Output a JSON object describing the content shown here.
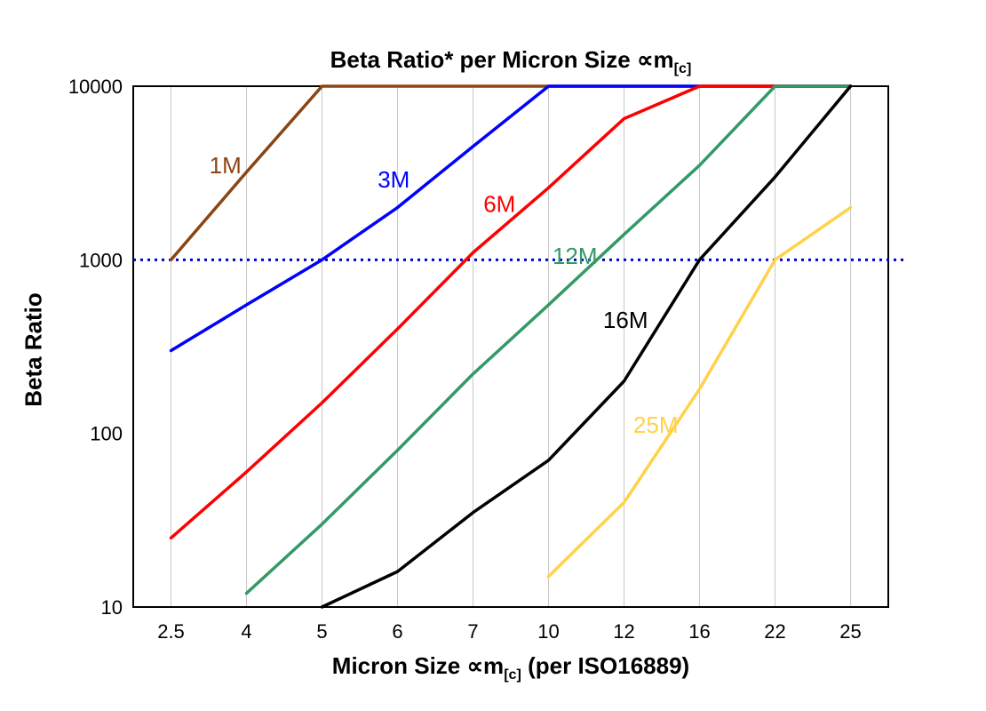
{
  "chart": {
    "title": {
      "main": "Beta Ratio* per Micron Size ",
      "symbol": "∝m",
      "sub": "[c]"
    },
    "x_axis": {
      "label_pre": "Micron Size ",
      "symbol": "∝m",
      "sub": "[c]",
      "label_post": " (per ISO16889)"
    },
    "y_axis": {
      "label": "Beta Ratio"
    }
  },
  "chart_data": {
    "type": "line",
    "title": "Beta Ratio* per Micron Size ∝m[c]",
    "xlabel": "Micron Size ∝m[c] (per ISO16889)",
    "ylabel": "Beta Ratio",
    "x_type": "categorical",
    "categories": [
      "2.5",
      "4",
      "5",
      "6",
      "7",
      "10",
      "12",
      "16",
      "22",
      "25"
    ],
    "y_scale": "log",
    "ylim": [
      10,
      10000
    ],
    "y_ticks": [
      "10",
      "100",
      "1000",
      "10000"
    ],
    "grid": "vertical-only",
    "grid_color": "#c9c9c9",
    "frame_color": "#000000",
    "reference_line": {
      "y": 1000,
      "color": "#0000cc",
      "style": "dotted"
    },
    "legend_position": "inline-labels",
    "series": [
      {
        "name": "1M",
        "color": "#8b4513",
        "values": [
          1000,
          3200,
          10000,
          10000,
          10000,
          10000,
          10000,
          10000,
          10000,
          10000
        ],
        "label_pos": [
          0.72,
          3500
        ]
      },
      {
        "name": "3M",
        "color": "#0000ff",
        "values": [
          300,
          550,
          1000,
          2000,
          4500,
          10000,
          10000,
          10000,
          10000,
          10000
        ],
        "label_pos": [
          2.95,
          2900
        ]
      },
      {
        "name": "6M",
        "color": "#ff0000",
        "values": [
          25,
          60,
          150,
          400,
          1100,
          2600,
          6500,
          10000,
          10000,
          10000
        ],
        "label_pos": [
          4.35,
          2100
        ]
      },
      {
        "name": "12M",
        "color": "#339966",
        "values": [
          null,
          12,
          30,
          80,
          220,
          550,
          1400,
          3500,
          10000,
          10000
        ],
        "label_pos": [
          5.35,
          1050
        ]
      },
      {
        "name": "16M",
        "color": "#000000",
        "values": [
          null,
          null,
          10,
          16,
          35,
          70,
          200,
          1000,
          3000,
          10000
        ],
        "label_pos": [
          6.02,
          450
        ]
      },
      {
        "name": "25M",
        "color": "#ffd24a",
        "values": [
          null,
          null,
          null,
          null,
          null,
          15,
          40,
          180,
          1000,
          2000
        ],
        "label_pos": [
          6.42,
          112
        ]
      }
    ]
  }
}
